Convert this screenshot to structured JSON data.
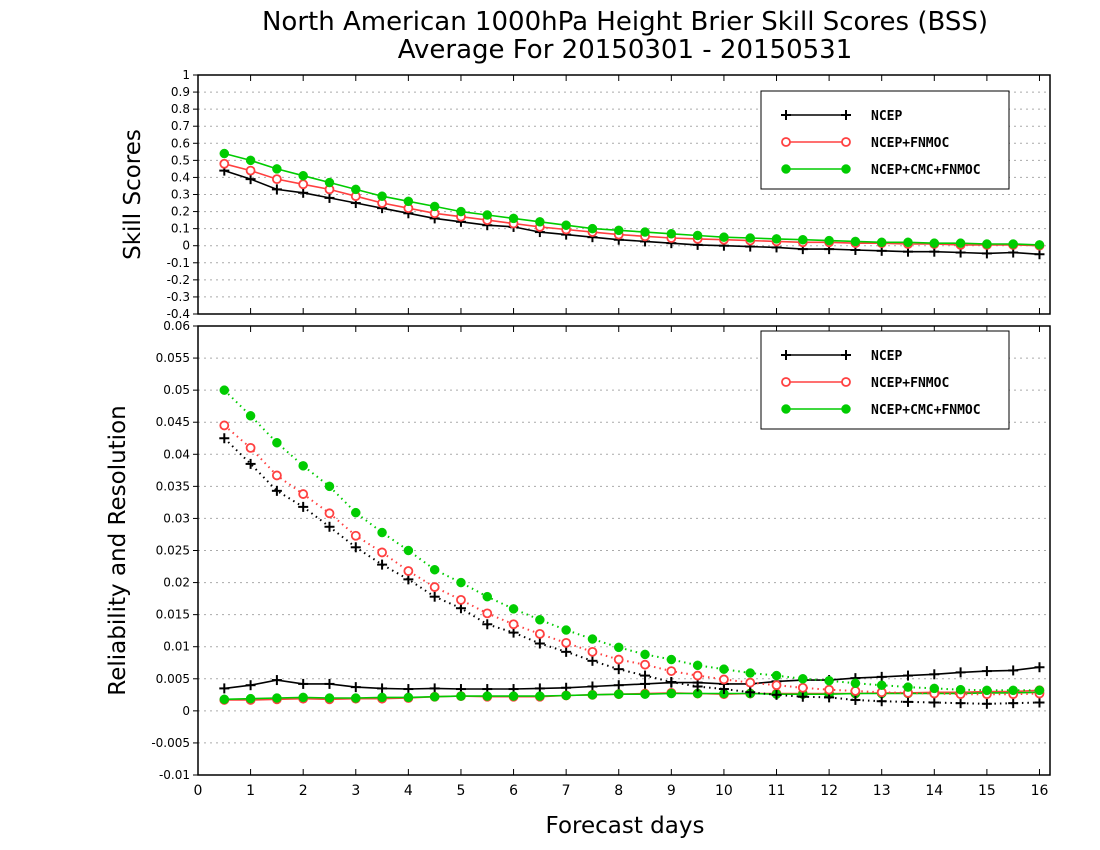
{
  "header": {
    "title": "North American 1000hPa Height Brier Skill Scores (BSS)",
    "subtitle": "Average For 20150301 - 20150531"
  },
  "chart_data": [
    {
      "type": "line",
      "title": "North American 1000hPa Height Brier Skill Scores (BSS)",
      "subtitle": "Average For 20150301 - 20150531",
      "xlabel": "Forecast days",
      "ylabel": "Skill Scores",
      "xlim": [
        0,
        16.2
      ],
      "ylim": [
        -0.4,
        1
      ],
      "xticks": [
        "0",
        "1",
        "2",
        "3",
        "4",
        "5",
        "6",
        "7",
        "8",
        "9",
        "10",
        "11",
        "12",
        "13",
        "14",
        "15",
        "16"
      ],
      "yticks": [
        "-0.4",
        "-0.3",
        "-0.2",
        "-0.1",
        "0",
        "0.1",
        "0.2",
        "0.3",
        "0.4",
        "0.5",
        "0.6",
        "0.7",
        "0.8",
        "0.9",
        "1"
      ],
      "grid": true,
      "legend_position": "top-right",
      "x": [
        0.5,
        1,
        1.5,
        2,
        2.5,
        3,
        3.5,
        4,
        4.5,
        5,
        5.5,
        6,
        6.5,
        7,
        7.5,
        8,
        8.5,
        9,
        9.5,
        10,
        10.5,
        11,
        11.5,
        12,
        12.5,
        13,
        13.5,
        14,
        14.5,
        15,
        15.5,
        16
      ],
      "series": [
        {
          "name": "NCEP",
          "color": "#000000",
          "marker": "plus",
          "values": [
            0.44,
            0.39,
            0.33,
            0.31,
            0.28,
            0.25,
            0.22,
            0.19,
            0.16,
            0.14,
            0.12,
            0.11,
            0.08,
            0.065,
            0.05,
            0.035,
            0.025,
            0.015,
            0.005,
            0,
            -0.005,
            -0.01,
            -0.02,
            -0.02,
            -0.025,
            -0.03,
            -0.035,
            -0.035,
            -0.04,
            -0.045,
            -0.04,
            -0.05
          ]
        },
        {
          "name": "NCEP+FNMOC",
          "color": "#ff4040",
          "marker": "open-circle",
          "values": [
            0.48,
            0.44,
            0.39,
            0.36,
            0.33,
            0.29,
            0.25,
            0.22,
            0.19,
            0.17,
            0.15,
            0.13,
            0.11,
            0.095,
            0.08,
            0.065,
            0.055,
            0.045,
            0.04,
            0.035,
            0.03,
            0.025,
            0.02,
            0.02,
            0.015,
            0.015,
            0.01,
            0.01,
            0.005,
            0.005,
            0.005,
            0
          ]
        },
        {
          "name": "NCEP+CMC+FNMOC",
          "color": "#00cc00",
          "marker": "filled-circle",
          "values": [
            0.54,
            0.5,
            0.45,
            0.41,
            0.37,
            0.33,
            0.29,
            0.26,
            0.23,
            0.2,
            0.18,
            0.16,
            0.14,
            0.12,
            0.1,
            0.09,
            0.08,
            0.07,
            0.06,
            0.05,
            0.045,
            0.04,
            0.035,
            0.03,
            0.025,
            0.02,
            0.02,
            0.015,
            0.015,
            0.01,
            0.01,
            0.005
          ]
        }
      ]
    },
    {
      "type": "line",
      "xlabel": "Forecast days",
      "ylabel": "Reliability and Resolution",
      "xlim": [
        0,
        16.2
      ],
      "ylim": [
        -0.01,
        0.06
      ],
      "xticks": [
        "0",
        "1",
        "2",
        "3",
        "4",
        "5",
        "6",
        "7",
        "8",
        "9",
        "10",
        "11",
        "12",
        "13",
        "14",
        "15",
        "16"
      ],
      "yticks": [
        "-0.01",
        "-0.005",
        "0",
        "0.005",
        "0.01",
        "0.015",
        "0.02",
        "0.025",
        "0.03",
        "0.035",
        "0.04",
        "0.045",
        "0.05",
        "0.055",
        "0.06"
      ],
      "grid": true,
      "legend_position": "top-right",
      "x": [
        0.5,
        1,
        1.5,
        2,
        2.5,
        3,
        3.5,
        4,
        4.5,
        5,
        5.5,
        6,
        6.5,
        7,
        7.5,
        8,
        8.5,
        9,
        9.5,
        10,
        10.5,
        11,
        11.5,
        12,
        12.5,
        13,
        13.5,
        14,
        14.5,
        15,
        15.5,
        16
      ],
      "series": [
        {
          "name": "NCEP",
          "color": "#000000",
          "marker": "plus",
          "linestyle": "solid",
          "role": "reliability",
          "values": [
            0.0035,
            0.004,
            0.0048,
            0.0042,
            0.0042,
            0.0037,
            0.0035,
            0.0034,
            0.0035,
            0.0034,
            0.0034,
            0.0034,
            0.0035,
            0.0036,
            0.0038,
            0.004,
            0.0042,
            0.0044,
            0.0044,
            0.0042,
            0.0042,
            0.0046,
            0.0048,
            0.0048,
            0.0051,
            0.0053,
            0.0055,
            0.0057,
            0.006,
            0.0062,
            0.0063,
            0.0068
          ]
        },
        {
          "name": "NCEP+FNMOC",
          "color": "#ff4040",
          "marker": "open-circle",
          "linestyle": "solid",
          "role": "reliability",
          "values": [
            0.0017,
            0.0017,
            0.0018,
            0.0019,
            0.0018,
            0.0019,
            0.0019,
            0.002,
            0.0022,
            0.0023,
            0.0022,
            0.0022,
            0.0022,
            0.0024,
            0.0025,
            0.0026,
            0.0027,
            0.0028,
            0.0027,
            0.0026,
            0.0027,
            0.0027,
            0.0027,
            0.0027,
            0.0027,
            0.0028,
            0.0028,
            0.0029,
            0.0029,
            0.003,
            0.003,
            0.0032
          ]
        },
        {
          "name": "NCEP+CMC+FNMOC",
          "color": "#00cc00",
          "marker": "filled-circle",
          "linestyle": "solid",
          "role": "reliability",
          "values": [
            0.0018,
            0.0019,
            0.002,
            0.0021,
            0.002,
            0.002,
            0.0021,
            0.0021,
            0.0022,
            0.0023,
            0.0023,
            0.0023,
            0.0023,
            0.0024,
            0.0025,
            0.0026,
            0.0026,
            0.0027,
            0.0027,
            0.0027,
            0.0027,
            0.0026,
            0.0026,
            0.0026,
            0.0027,
            0.0027,
            0.0027,
            0.0027,
            0.0027,
            0.0028,
            0.0028,
            0.0029
          ]
        },
        {
          "name": "NCEP",
          "color": "#000000",
          "marker": "plus",
          "linestyle": "dotted",
          "role": "resolution",
          "values": [
            0.0425,
            0.0385,
            0.0343,
            0.0318,
            0.0287,
            0.0255,
            0.0228,
            0.0205,
            0.0178,
            0.016,
            0.0135,
            0.0122,
            0.0105,
            0.0092,
            0.0078,
            0.0065,
            0.0055,
            0.0045,
            0.0038,
            0.0034,
            0.0029,
            0.0025,
            0.0022,
            0.0021,
            0.0017,
            0.0015,
            0.0014,
            0.0013,
            0.0012,
            0.0011,
            0.0012,
            0.0013
          ]
        },
        {
          "name": "NCEP+FNMOC",
          "color": "#ff4040",
          "marker": "open-circle",
          "linestyle": "dotted",
          "role": "resolution",
          "values": [
            0.0445,
            0.041,
            0.0367,
            0.0338,
            0.0308,
            0.0273,
            0.0247,
            0.0218,
            0.0193,
            0.0173,
            0.0152,
            0.0135,
            0.012,
            0.0106,
            0.0092,
            0.008,
            0.0072,
            0.0062,
            0.0055,
            0.0049,
            0.0044,
            0.004,
            0.0036,
            0.0033,
            0.0031,
            0.0029,
            0.0028,
            0.0027,
            0.0026,
            0.0026,
            0.0026,
            0.0027
          ]
        },
        {
          "name": "NCEP+CMC+FNMOC",
          "color": "#00cc00",
          "marker": "filled-circle",
          "linestyle": "dotted",
          "role": "resolution",
          "values": [
            0.05,
            0.046,
            0.0418,
            0.0382,
            0.035,
            0.0309,
            0.0278,
            0.025,
            0.022,
            0.02,
            0.0178,
            0.0159,
            0.0142,
            0.0126,
            0.0112,
            0.0099,
            0.0088,
            0.008,
            0.0071,
            0.0065,
            0.0059,
            0.0055,
            0.005,
            0.0047,
            0.0043,
            0.004,
            0.0037,
            0.0035,
            0.0033,
            0.0032,
            0.0032,
            0.0032
          ]
        }
      ]
    }
  ]
}
